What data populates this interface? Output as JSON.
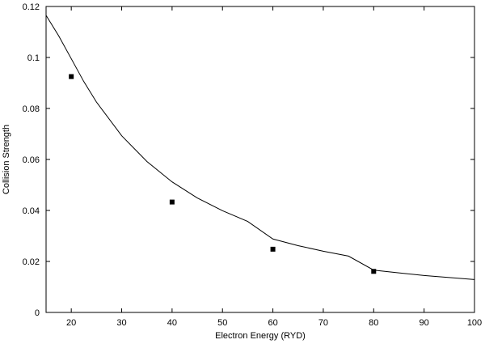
{
  "chart_data": {
    "type": "scatter",
    "title": "",
    "xlabel": "Electron Energy (RYD)",
    "ylabel": "Collision Strength",
    "xlim": [
      15,
      100
    ],
    "ylim": [
      0,
      0.12
    ],
    "xticks": [
      20,
      30,
      40,
      50,
      60,
      70,
      80,
      90,
      100
    ],
    "yticks": [
      0,
      0.02,
      0.04,
      0.06,
      0.08,
      0.1,
      0.12
    ],
    "ytick_labels": [
      "0",
      "0.02",
      "0.04",
      "0.06",
      "0.08",
      "0.1",
      "0.12"
    ],
    "grid": false,
    "series": [
      {
        "kind": "points",
        "marker": "square",
        "color": "#000000",
        "x": [
          20,
          40,
          60,
          80
        ],
        "y": [
          0.0925,
          0.0433,
          0.0248,
          0.0161
        ]
      },
      {
        "kind": "curve",
        "color": "#000000",
        "x": [
          15,
          17.5,
          20,
          22.5,
          25,
          30,
          35,
          40,
          45,
          50,
          55,
          60,
          65,
          70,
          75,
          80,
          85,
          90,
          95,
          100
        ],
        "y": [
          0.1165,
          0.1085,
          0.0995,
          0.0905,
          0.0825,
          0.0693,
          0.0592,
          0.0512,
          0.0449,
          0.0399,
          0.0357,
          0.0288,
          0.0262,
          0.024,
          0.0221,
          0.0166,
          0.0155,
          0.0145,
          0.0137,
          0.0129
        ]
      }
    ]
  }
}
